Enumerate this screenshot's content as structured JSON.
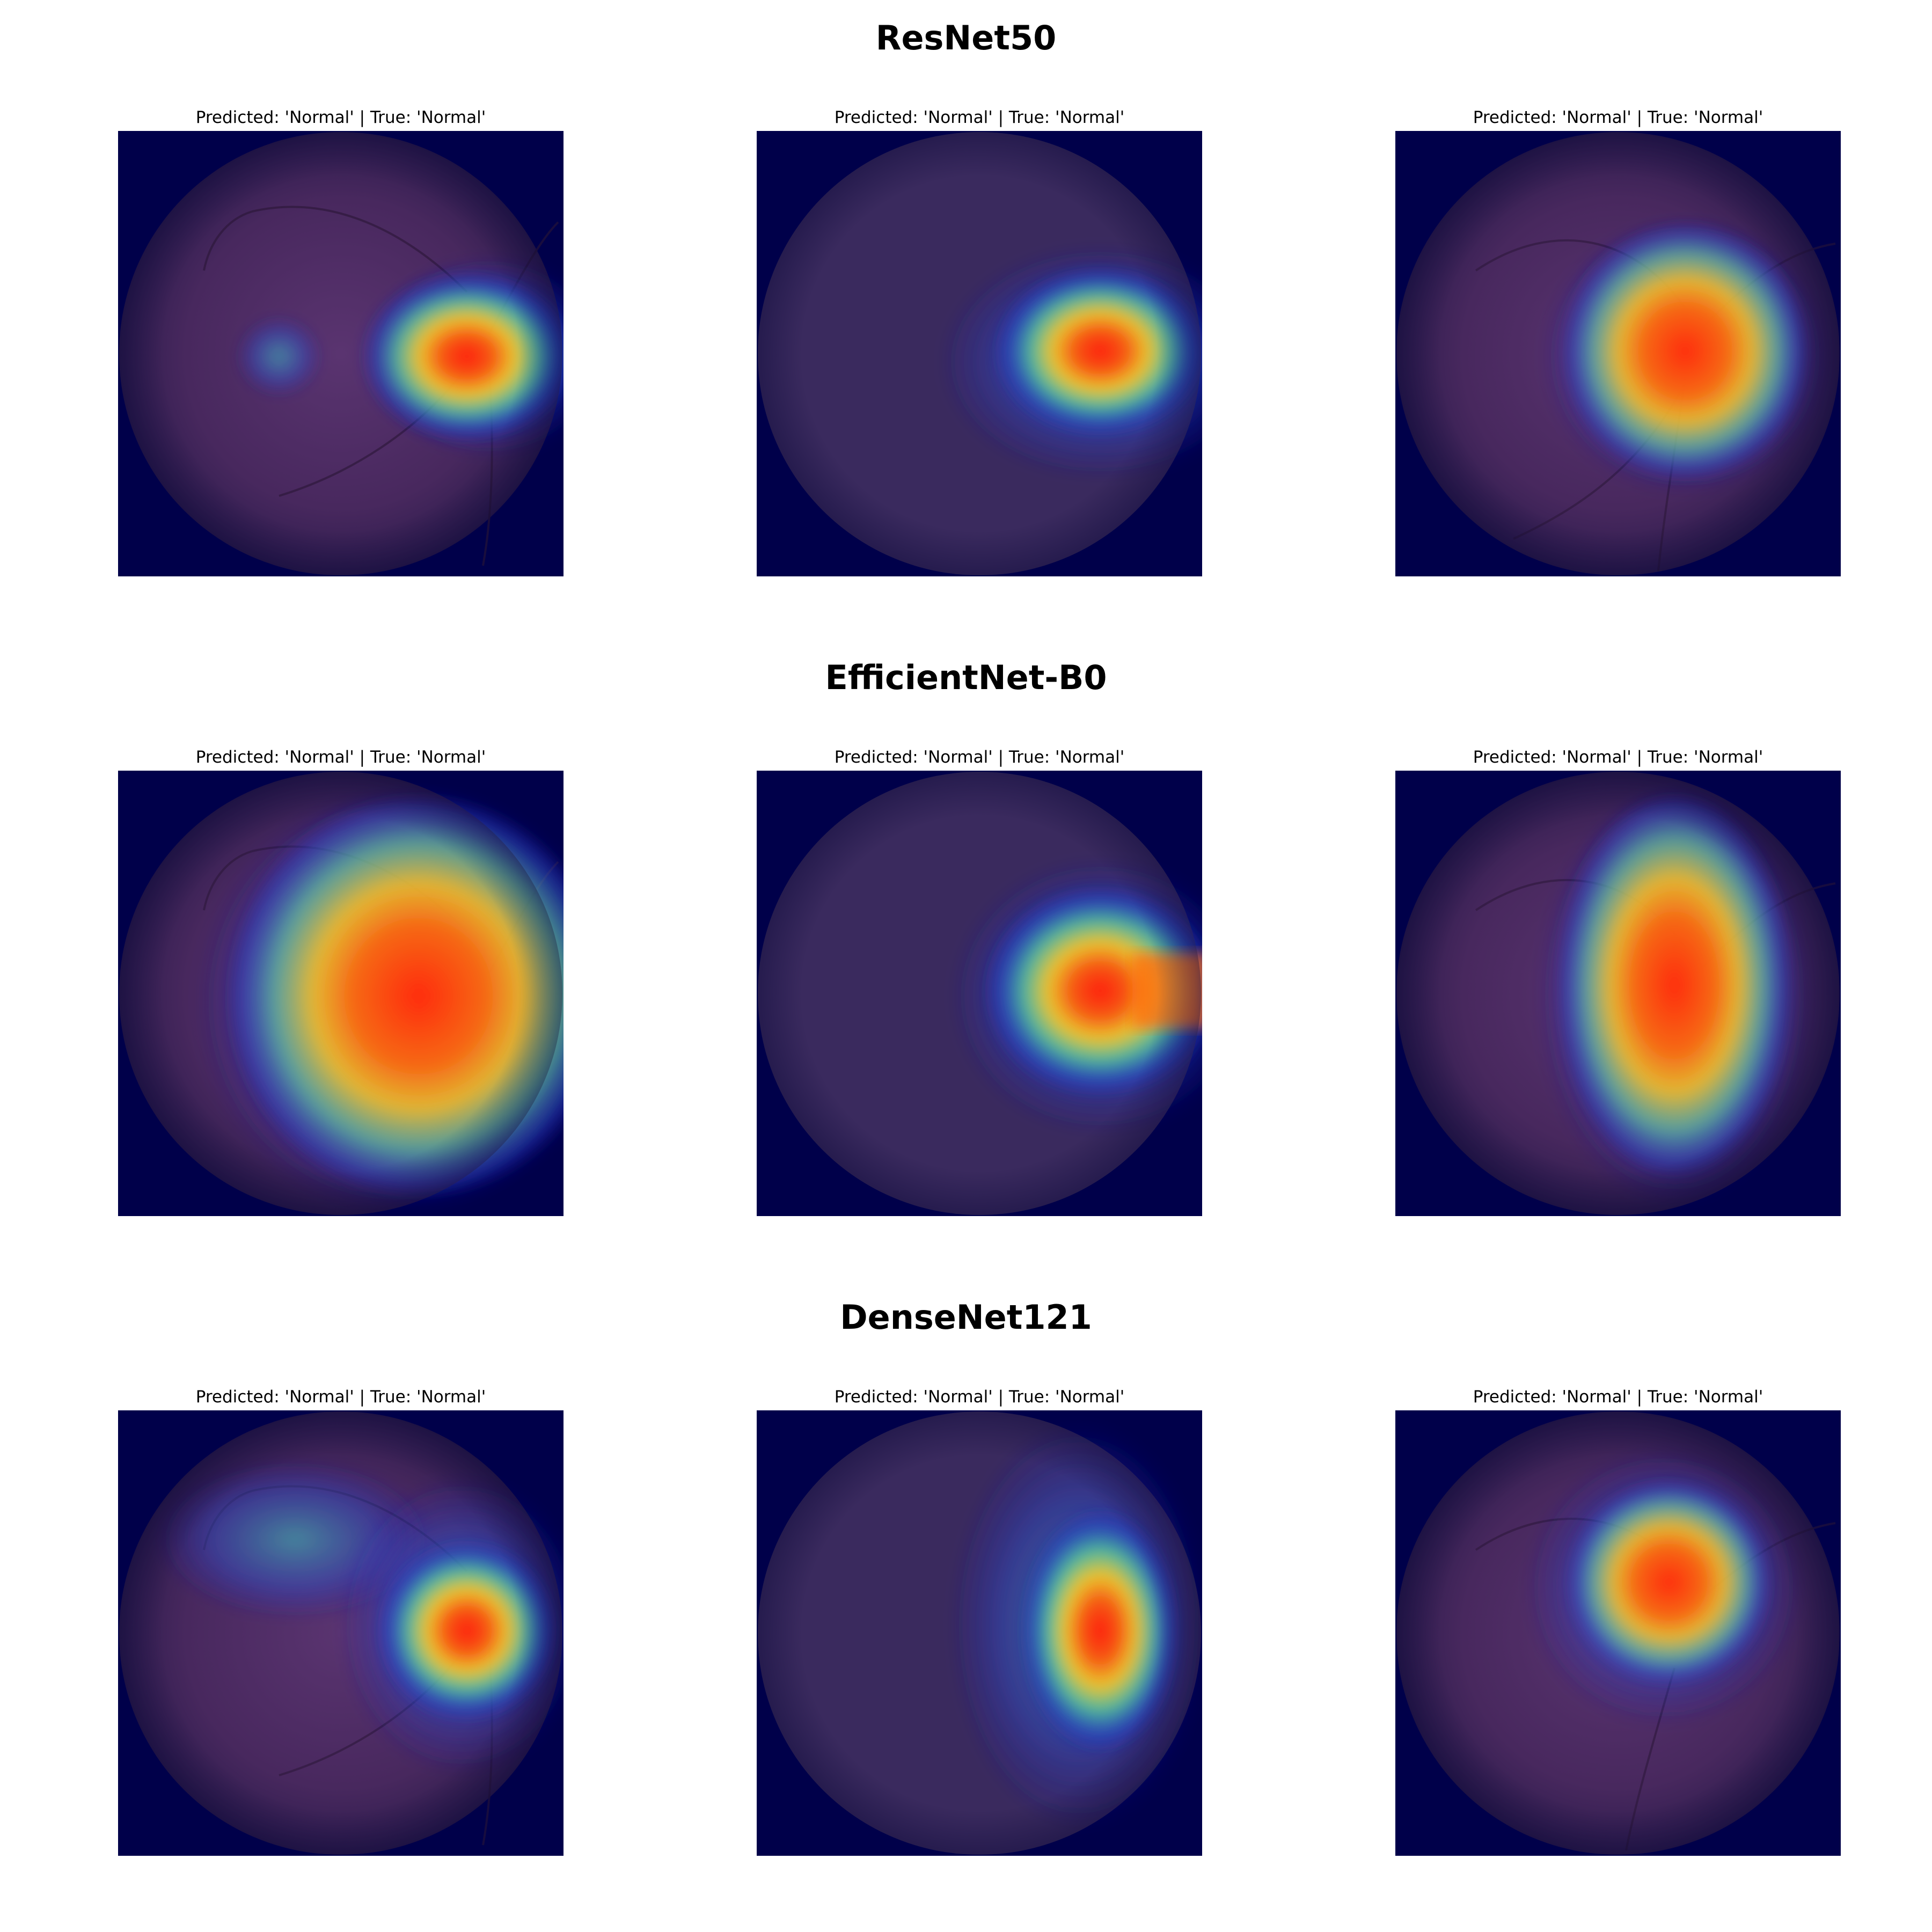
{
  "rows": [
    {
      "model": "ResNet50",
      "panels": [
        {
          "caption": "Predicted: 'Normal' | True: 'Normal'",
          "disc_side": "right",
          "heat_shape": "small-diamond"
        },
        {
          "caption": "Predicted: 'Normal' | True: 'Normal'",
          "disc_side": "right",
          "heat_shape": "small-diamond"
        },
        {
          "caption": "Predicted: 'Normal' | True: 'Normal'",
          "disc_side": "right",
          "heat_shape": "medium-blob"
        }
      ]
    },
    {
      "model": "EfficientNet-B0",
      "panels": [
        {
          "caption": "Predicted: 'Normal' | True: 'Normal'",
          "disc_side": "right",
          "heat_shape": "large-blob"
        },
        {
          "caption": "Predicted: 'Normal' | True: 'Normal'",
          "disc_side": "right",
          "heat_shape": "elongated"
        },
        {
          "caption": "Predicted: 'Normal' | True: 'Normal'",
          "disc_side": "right",
          "heat_shape": "vertical-band"
        }
      ]
    },
    {
      "model": "DenseNet121",
      "panels": [
        {
          "caption": "Predicted: 'Normal' | True: 'Normal'",
          "disc_side": "right",
          "heat_shape": "small-diamond"
        },
        {
          "caption": "Predicted: 'Normal' | True: 'Normal'",
          "disc_side": "right",
          "heat_shape": "vertical-band"
        },
        {
          "caption": "Predicted: 'Normal' | True: 'Normal'",
          "disc_side": "right",
          "heat_shape": "medium-blob"
        }
      ]
    }
  ],
  "colors": {
    "background": "#00004a",
    "fundus": "#4a2a5e",
    "heat_hot": "#ff2a10",
    "heat_warm": "#ffd020",
    "heat_mid": "#40d0b0",
    "heat_cool": "#2030d0"
  }
}
